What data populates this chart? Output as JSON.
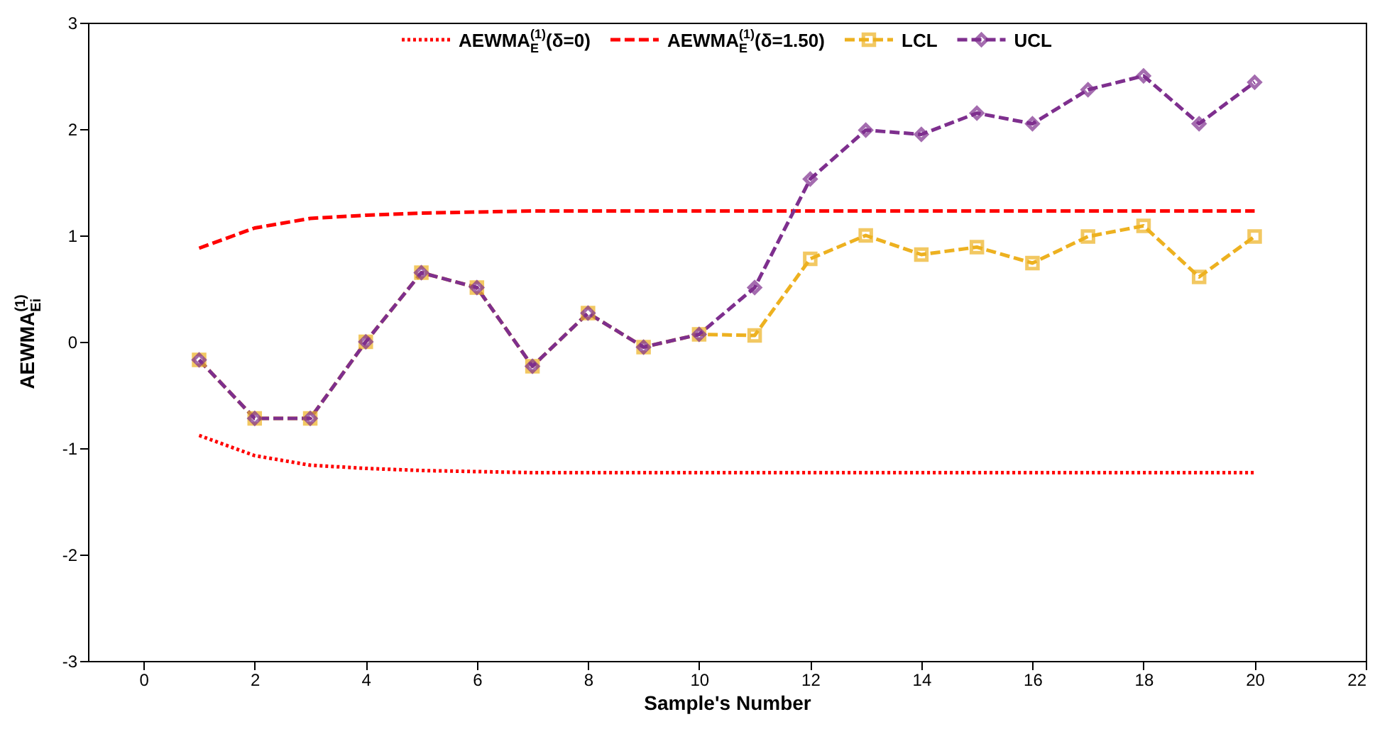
{
  "chart_data": {
    "type": "line",
    "xlabel": "Sample's Number",
    "ylabel": "AEWMA$_{Ei}$$^{(1)}$",
    "x": [
      1,
      2,
      3,
      4,
      5,
      6,
      7,
      8,
      9,
      10,
      11,
      12,
      13,
      14,
      15,
      16,
      17,
      18,
      19,
      20
    ],
    "series": [
      {
        "name": "AEWMA$_{E}$$^{(1)}$(δ=0)",
        "color": "#ff0000",
        "line_style": "dotted",
        "marker": "none",
        "values": [
          -0.88,
          -1.07,
          -1.16,
          -1.19,
          -1.21,
          -1.22,
          -1.23,
          -1.23,
          -1.23,
          -1.23,
          -1.23,
          -1.23,
          -1.23,
          -1.23,
          -1.23,
          -1.23,
          -1.23,
          -1.23,
          -1.23,
          -1.23
        ]
      },
      {
        "name": "AEWMA$_{E}$$^{(1)}$(δ=1.50)",
        "color": "#ff0000",
        "line_style": "dashed",
        "marker": "none",
        "values": [
          0.88,
          1.07,
          1.16,
          1.19,
          1.21,
          1.22,
          1.23,
          1.23,
          1.23,
          1.23,
          1.23,
          1.23,
          1.23,
          1.23,
          1.23,
          1.23,
          1.23,
          1.23,
          1.23,
          1.23
        ]
      },
      {
        "name": "LCL",
        "color": "#edb120",
        "line_style": "dashed",
        "marker": "square",
        "values": [
          -0.17,
          -0.72,
          -0.72,
          0.0,
          0.65,
          0.51,
          -0.23,
          0.27,
          -0.05,
          0.07,
          0.06,
          0.78,
          1.0,
          0.82,
          0.89,
          0.74,
          0.99,
          1.09,
          0.61,
          0.99
        ]
      },
      {
        "name": "UCL",
        "color": "#7e2f8e",
        "line_style": "dashed",
        "marker": "diamond",
        "values": [
          -0.17,
          -0.72,
          -0.72,
          0.0,
          0.65,
          0.51,
          -0.23,
          0.27,
          -0.05,
          0.07,
          0.51,
          1.53,
          1.99,
          1.95,
          2.15,
          2.05,
          2.37,
          2.5,
          2.05,
          2.44
        ]
      }
    ],
    "xlim": [
      -1,
      22
    ],
    "xticks": [
      0,
      2,
      4,
      6,
      8,
      10,
      12,
      14,
      16,
      18,
      20,
      22
    ],
    "ylim": [
      -3,
      3
    ],
    "yticks": [
      -3,
      -2,
      -1,
      0,
      1,
      2,
      3
    ],
    "grid": false,
    "legend": "top"
  }
}
